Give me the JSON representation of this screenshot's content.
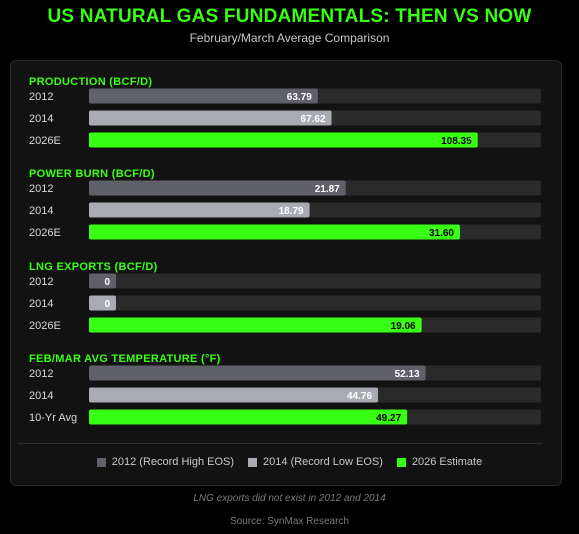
{
  "title": "US NATURAL GAS FUNDAMENTALS: THEN VS NOW",
  "subtitle": "February/March Average Comparison",
  "colors": {
    "accent": "#39ff14",
    "bar_2012": "#5f6068",
    "bar_2014": "#a9abb2",
    "bar_2026": "#39ff14",
    "track": "#2a2a2a"
  },
  "legend": [
    {
      "label": "2012 (Record High EOS)",
      "color": "#5f6068"
    },
    {
      "label": "2014 (Record Low EOS)",
      "color": "#a9abb2"
    },
    {
      "label": "2026 Estimate",
      "color": "#39ff14"
    }
  ],
  "note": "LNG exports did not exist in 2012 and 2014",
  "source": "Source: SynMax Research",
  "chart_data": [
    {
      "type": "bar",
      "title": "PRODUCTION (BCF/D)",
      "categories": [
        "2012",
        "2014",
        "2026E"
      ],
      "values": [
        63.79,
        67.62,
        108.35
      ],
      "labels": [
        "63.79",
        "67.62",
        "108.35"
      ],
      "xlim": [
        0,
        126
      ]
    },
    {
      "type": "bar",
      "title": "POWER BURN (BCF/D)",
      "categories": [
        "2012",
        "2014",
        "2026E"
      ],
      "values": [
        21.87,
        18.79,
        31.6
      ],
      "labels": [
        "21.87",
        "18.79",
        "31.60"
      ],
      "xlim": [
        0,
        38.5
      ]
    },
    {
      "type": "bar",
      "title": "LNG EXPORTS (BCF/D)",
      "categories": [
        "2012",
        "2014",
        "2026E"
      ],
      "values": [
        0,
        0,
        19.06
      ],
      "labels": [
        "0",
        "0",
        "19.06"
      ],
      "xlim": [
        0,
        25.9
      ]
    },
    {
      "type": "bar",
      "title": "FEB/MAR AVG TEMPERATURE (°F)",
      "categories": [
        "2012",
        "2014",
        "10-Yr Avg"
      ],
      "values": [
        52.13,
        44.76,
        49.27
      ],
      "labels": [
        "52.13",
        "44.76",
        "49.27"
      ],
      "xlim": [
        0,
        70
      ]
    }
  ]
}
